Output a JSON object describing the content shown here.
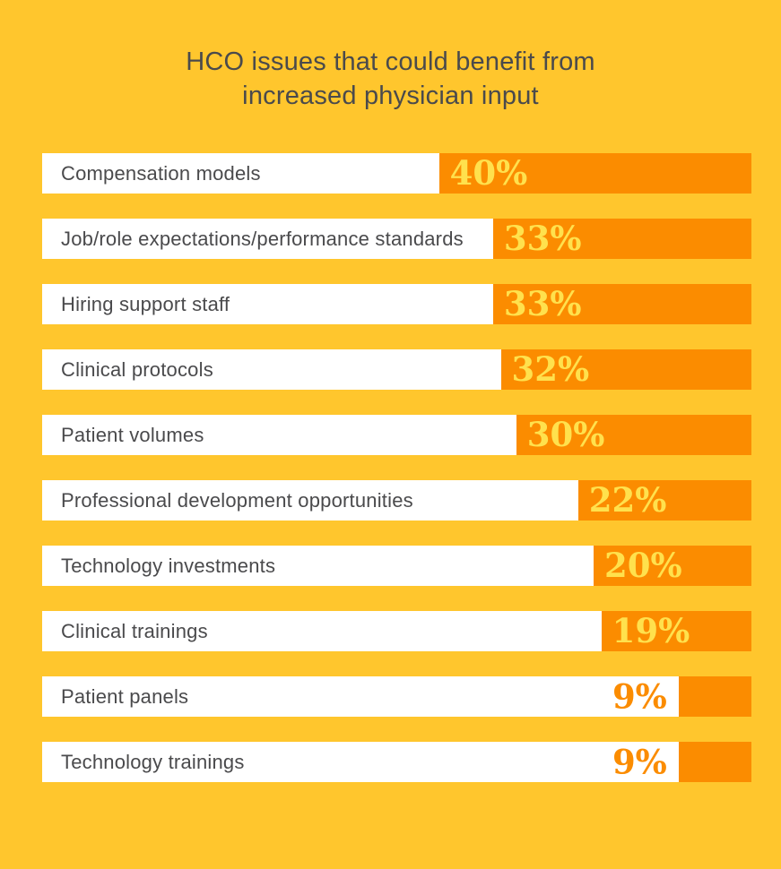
{
  "chart_data": {
    "type": "bar",
    "orientation": "horizontal",
    "title": "HCO issues that could benefit from increased physician input",
    "title_lines": [
      "HCO issues that could benefit from",
      "increased physician input"
    ],
    "categories": [
      "Compensation models",
      "Job/role expectations/performance standards",
      "Hiring support staff",
      "Clinical protocols",
      "Patient volumes",
      "Professional development opportunities",
      "Technology investments",
      "Clinical trainings",
      "Patient panels",
      "Technology trainings"
    ],
    "values": [
      40,
      33,
      33,
      32,
      30,
      22,
      20,
      19,
      9,
      9
    ],
    "value_suffix": "%",
    "xlabel": "",
    "ylabel": "",
    "xlim": [
      0,
      91
    ],
    "grid": false,
    "legend": "none",
    "colors": {
      "background": "#FFC62D",
      "bar_track": "#FFFFFF",
      "bar_fill": "#FB8C00",
      "value_on_fill": "#FFE14D",
      "value_on_track": "#FB8C00",
      "label_text": "#4A4A4C",
      "title_text": "#4A4A4C"
    }
  }
}
